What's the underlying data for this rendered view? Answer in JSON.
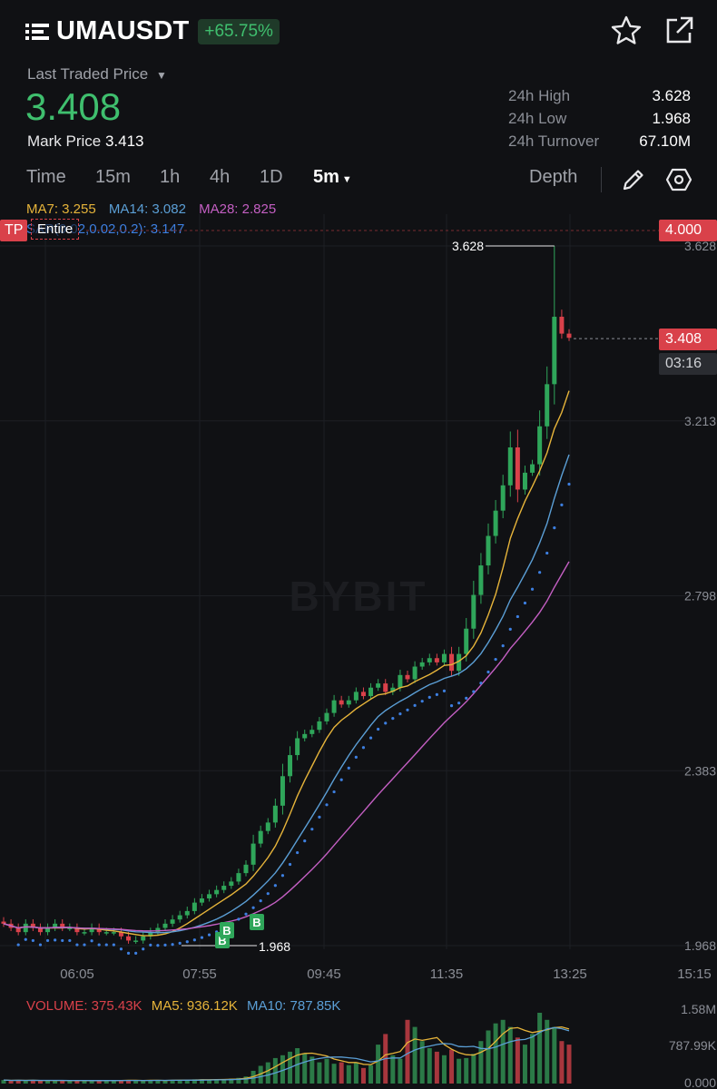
{
  "header": {
    "symbol": "UMAUSDT",
    "change": "+65.75%",
    "last_traded_label": "Last Traded Price",
    "last_price": "3.408",
    "mark_label": "Mark Price",
    "mark_value": "3.413",
    "stats": [
      {
        "label": "24h High",
        "value": "3.628"
      },
      {
        "label": "24h Low",
        "value": "1.968"
      },
      {
        "label": "24h Turnover",
        "value": "67.10M"
      }
    ]
  },
  "tabs": [
    {
      "label": "Time",
      "active": false
    },
    {
      "label": "15m",
      "active": false
    },
    {
      "label": "1h",
      "active": false
    },
    {
      "label": "4h",
      "active": false
    },
    {
      "label": "1D",
      "active": false
    },
    {
      "label": "5m",
      "active": true
    }
  ],
  "depth_label": "Depth",
  "indicators": {
    "ma7": "MA7: 3.255",
    "ma14": "MA14: 3.082",
    "ma28": "MA28: 2.825",
    "sar": "SAR(0.02,0.02,0.2): 3.147"
  },
  "tp": {
    "label": "TP",
    "entire": "Entire",
    "price": "4.000"
  },
  "last_price_tag": {
    "price": "3.408",
    "countdown": "03:16"
  },
  "watermark": "BYBIT",
  "chart_data": {
    "type": "candlestick",
    "y_ticks": [
      "3.628",
      "3.213",
      "2.798",
      "2.383",
      "1.968"
    ],
    "y_range": [
      1.968,
      4.0
    ],
    "x_ticks": [
      "06:05",
      "07:55",
      "09:45",
      "11:35",
      "13:25",
      "15:15"
    ],
    "high_marker": "3.628",
    "low_marker": "1.968",
    "buy_markers": [
      "B",
      "B",
      "B"
    ],
    "colors": {
      "up": "#2fa65a",
      "down": "#d9414a",
      "ma7": "#e6b43a",
      "ma14": "#5b9fd6",
      "ma28": "#c45fc3",
      "sar": "#3d7fe0"
    },
    "closes": [
      2.02,
      2.01,
      2.0,
      2.02,
      2.01,
      2.0,
      2.01,
      2.02,
      2.01,
      2.01,
      2.0,
      2.0,
      2.01,
      2.0,
      2.0,
      2.0,
      1.99,
      1.98,
      1.98,
      1.99,
      2.0,
      2.01,
      2.02,
      2.03,
      2.04,
      2.05,
      2.07,
      2.08,
      2.09,
      2.1,
      2.11,
      2.12,
      2.14,
      2.16,
      2.21,
      2.24,
      2.26,
      2.3,
      2.37,
      2.42,
      2.46,
      2.47,
      2.48,
      2.5,
      2.52,
      2.55,
      2.54,
      2.55,
      2.57,
      2.56,
      2.58,
      2.59,
      2.57,
      2.58,
      2.61,
      2.6,
      2.63,
      2.64,
      2.65,
      2.64,
      2.66,
      2.62,
      2.66,
      2.72,
      2.8,
      2.87,
      2.94,
      3.0,
      3.06,
      3.15,
      3.05,
      3.09,
      3.11,
      3.2,
      3.3,
      3.46,
      3.42,
      3.41
    ]
  },
  "volume": {
    "volume": "VOLUME: 375.43K",
    "ma5": "MA5: 936.12K",
    "ma10": "MA10: 787.85K",
    "y_ticks": [
      "1.58M",
      "787.99K",
      "0.000"
    ],
    "values": [
      0.05,
      0.04,
      0.05,
      0.04,
      0.05,
      0.04,
      0.04,
      0.05,
      0.04,
      0.04,
      0.04,
      0.04,
      0.04,
      0.04,
      0.05,
      0.04,
      0.05,
      0.05,
      0.04,
      0.04,
      0.05,
      0.05,
      0.04,
      0.05,
      0.05,
      0.05,
      0.06,
      0.06,
      0.05,
      0.06,
      0.06,
      0.07,
      0.08,
      0.1,
      0.18,
      0.25,
      0.3,
      0.36,
      0.4,
      0.45,
      0.5,
      0.42,
      0.38,
      0.3,
      0.35,
      0.28,
      0.3,
      0.26,
      0.3,
      0.22,
      0.26,
      0.55,
      0.7,
      0.4,
      0.35,
      0.9,
      0.8,
      0.6,
      0.5,
      0.45,
      0.4,
      0.48,
      0.35,
      0.36,
      0.42,
      0.6,
      0.75,
      0.85,
      0.9,
      0.8,
      0.65,
      0.55,
      0.7,
      1.0,
      0.9,
      0.8,
      0.6,
      0.55
    ]
  }
}
